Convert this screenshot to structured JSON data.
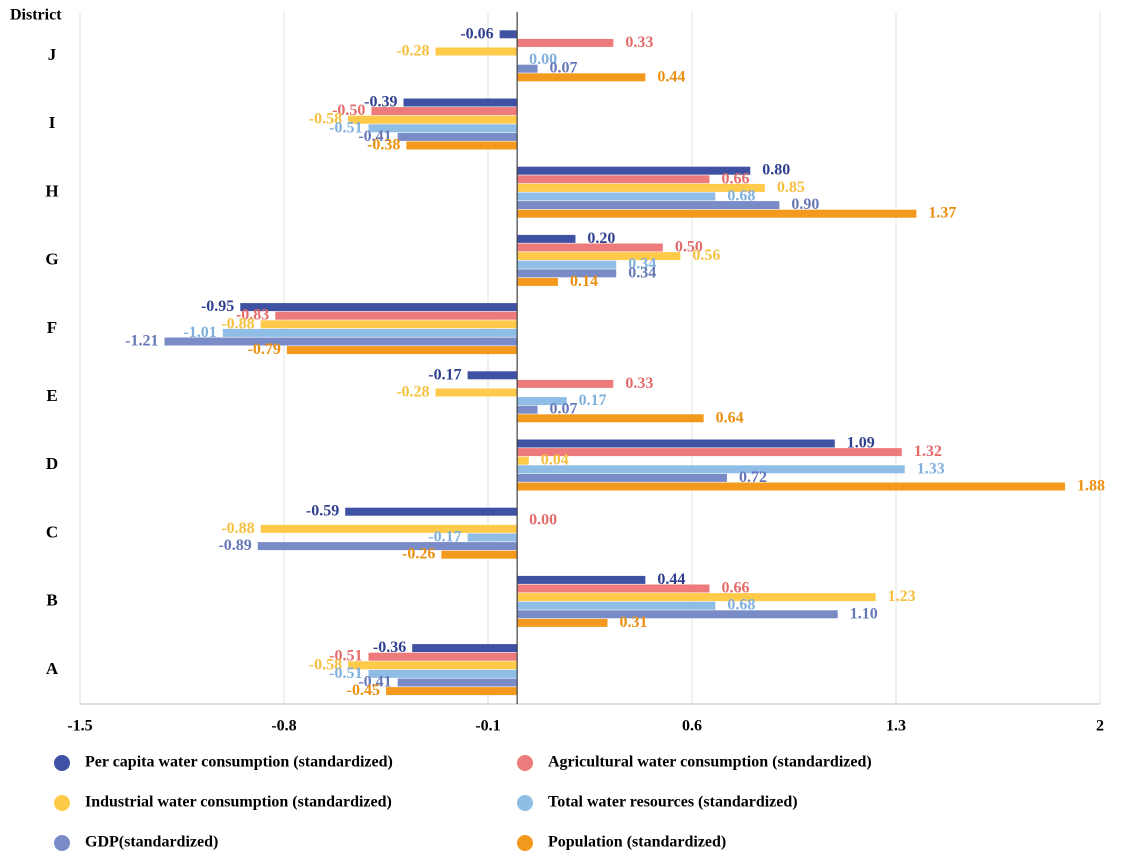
{
  "chart_data": {
    "type": "bar",
    "orientation": "horizontal",
    "y_label": "District",
    "categories": [
      "A",
      "B",
      "C",
      "D",
      "E",
      "F",
      "G",
      "H",
      "I",
      "J"
    ],
    "series": [
      {
        "name": "Per capita water consumption (standardized)",
        "color": "#3f51a3",
        "label_color": "#2f3f8f",
        "values": [
          -0.36,
          0.44,
          -0.59,
          1.09,
          -0.17,
          -0.95,
          0.2,
          0.8,
          -0.39,
          -0.06
        ],
        "value_labels": [
          "-0.36",
          "0.44",
          "-0.59",
          "1.09",
          "-0.17",
          "-0.95",
          "0.20",
          "0.80",
          "-0.39",
          "-0.06"
        ]
      },
      {
        "name": "Agricultural water consumption (standardized)",
        "color": "#ee7b7b",
        "label_color": "#e56a6a",
        "values": [
          -0.51,
          0.66,
          0.0,
          1.32,
          0.33,
          -0.83,
          0.5,
          0.66,
          -0.5,
          0.33
        ],
        "value_labels": [
          "-0.51",
          "0.66",
          "0.00",
          "1.32",
          "0.33",
          "-0.83",
          "0.50",
          "0.66",
          "-0.50",
          "0.33"
        ]
      },
      {
        "name": "Industrial water consumption (standardized)",
        "color": "#ffc94a",
        "label_color": "#f5c040",
        "values": [
          -0.58,
          1.23,
          -0.88,
          0.04,
          -0.28,
          -0.88,
          0.56,
          0.85,
          -0.58,
          -0.28
        ],
        "value_labels": [
          "-0.58",
          "1.23",
          "-0.88",
          "0.04",
          "-0.28",
          "-0.88",
          "0.56",
          "0.85",
          "-0.58",
          "-0.28"
        ]
      },
      {
        "name": "Total water resources (standardized)",
        "color": "#8fbde6",
        "label_color": "#7fb0de",
        "values": [
          -0.51,
          0.68,
          -0.17,
          1.33,
          0.17,
          -1.01,
          0.34,
          0.68,
          -0.51,
          0.0
        ],
        "value_labels": [
          "-0.51",
          "0.68",
          "-0.17",
          "1.33",
          "0.17",
          "-1.01",
          "0.34",
          "0.68",
          "-0.51",
          "0.00"
        ]
      },
      {
        "name": "GDP(standardized)",
        "color": "#7a8cc8",
        "label_color": "#6677b8",
        "values": [
          -0.41,
          1.1,
          -0.89,
          0.72,
          0.07,
          -1.21,
          0.34,
          0.9,
          -0.41,
          0.07
        ],
        "value_labels": [
          "-0.41",
          "1.10",
          "-0.89",
          "0.72",
          "0.07",
          "-1.21",
          "0.34",
          "0.90",
          "-0.41",
          "0.07"
        ]
      },
      {
        "name": "Population (standardized)",
        "color": "#f39a1e",
        "label_color": "#ea9010",
        "values": [
          -0.45,
          0.31,
          -0.26,
          1.88,
          0.64,
          -0.79,
          0.14,
          1.37,
          -0.38,
          0.44
        ],
        "value_labels": [
          "-0.45",
          "0.31",
          "-0.26",
          "1.88",
          "0.64",
          "-0.79",
          "0.14",
          "1.37",
          "-0.38",
          "0.44"
        ]
      }
    ],
    "xlim": [
      -1.5,
      2
    ],
    "xticks": [
      -1.5,
      -0.8,
      -0.1,
      0.6,
      1.3,
      2
    ],
    "grid": true,
    "legend": "bottom"
  }
}
